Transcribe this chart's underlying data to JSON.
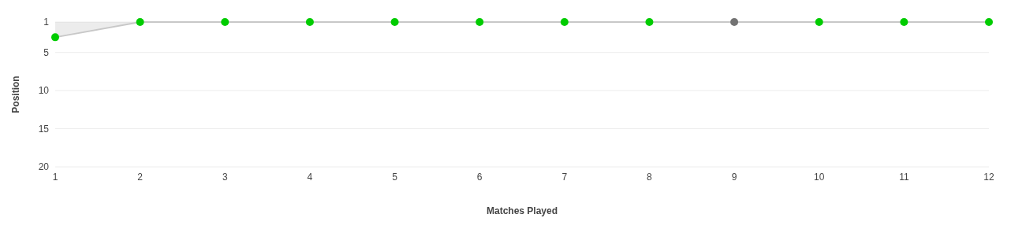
{
  "chart_data": {
    "type": "area",
    "xlabel": "Matches Played",
    "ylabel": "Position",
    "x": [
      1,
      2,
      3,
      4,
      5,
      6,
      7,
      8,
      9,
      10,
      11,
      12
    ],
    "series": [
      {
        "color": "#c8c8c8",
        "values": [
          3,
          1,
          1,
          1,
          1,
          1,
          1,
          1,
          1,
          1,
          1,
          1
        ],
        "colors": [
          "#00cc00",
          "#00cc00",
          "#00cc00",
          "#00cc00",
          "#00cc00",
          "#00cc00",
          "#00cc00",
          "#00cc00",
          "#737373",
          "#00cc00",
          "#00cc00",
          "#00cc00"
        ]
      }
    ],
    "xlim": [
      1,
      12
    ],
    "xticks": [
      1,
      2,
      3,
      4,
      5,
      6,
      7,
      8,
      9,
      10,
      11,
      12
    ],
    "ylim": [
      20,
      1
    ],
    "yticks": [
      1,
      5,
      10,
      15,
      20
    ],
    "grid": "y",
    "marker": "circle"
  }
}
